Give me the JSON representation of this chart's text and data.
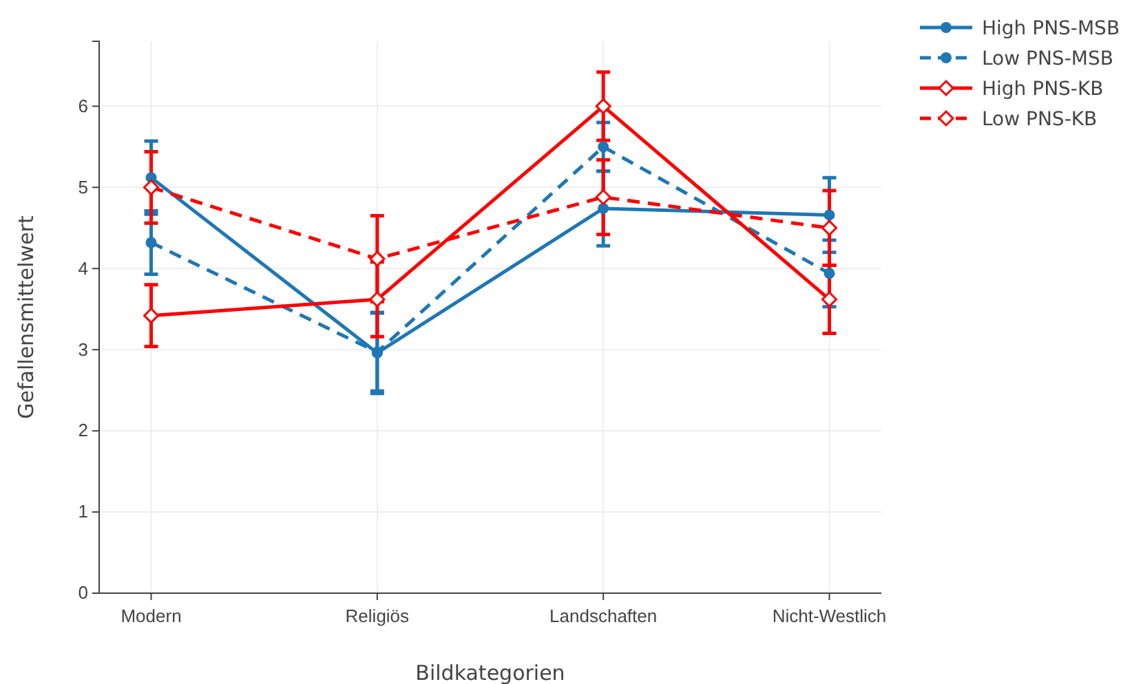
{
  "chart_data": {
    "type": "line",
    "xlabel": "Bildkategorien",
    "ylabel": "Gefallensmittelwert",
    "categories": [
      "Modern",
      "Religiös",
      "Landschaften",
      "Nicht-Westlich"
    ],
    "ylim": [
      0,
      6.8
    ],
    "yticks": [
      0,
      1,
      2,
      3,
      4,
      5,
      6
    ],
    "grid": true,
    "legend": "top right",
    "series": [
      {
        "name": "High PNS-MSB",
        "color": "#1f77b4",
        "marker": "circle",
        "line_style": "solid",
        "values": [
          5.12,
          2.96,
          4.74,
          4.66
        ],
        "errors": [
          0.45,
          0.5,
          0.46,
          0.46
        ]
      },
      {
        "name": "Low PNS-MSB",
        "color": "#1f77b4",
        "marker": "circle",
        "line_style": "dashed",
        "values": [
          4.32,
          2.97,
          5.5,
          3.94
        ],
        "errors": [
          0.39,
          0.48,
          0.3,
          0.41
        ]
      },
      {
        "name": "High PNS-KB",
        "color": "#ff0000",
        "marker": "diamond",
        "line_style": "solid",
        "values": [
          3.42,
          3.62,
          6.0,
          3.62
        ],
        "errors": [
          0.38,
          0.46,
          0.42,
          0.42
        ]
      },
      {
        "name": "Low PNS-KB",
        "color": "#ff0000",
        "marker": "diamond",
        "line_style": "dashed",
        "values": [
          5.0,
          4.12,
          4.88,
          4.5
        ],
        "errors": [
          0.44,
          0.53,
          0.46,
          0.46
        ]
      }
    ]
  }
}
